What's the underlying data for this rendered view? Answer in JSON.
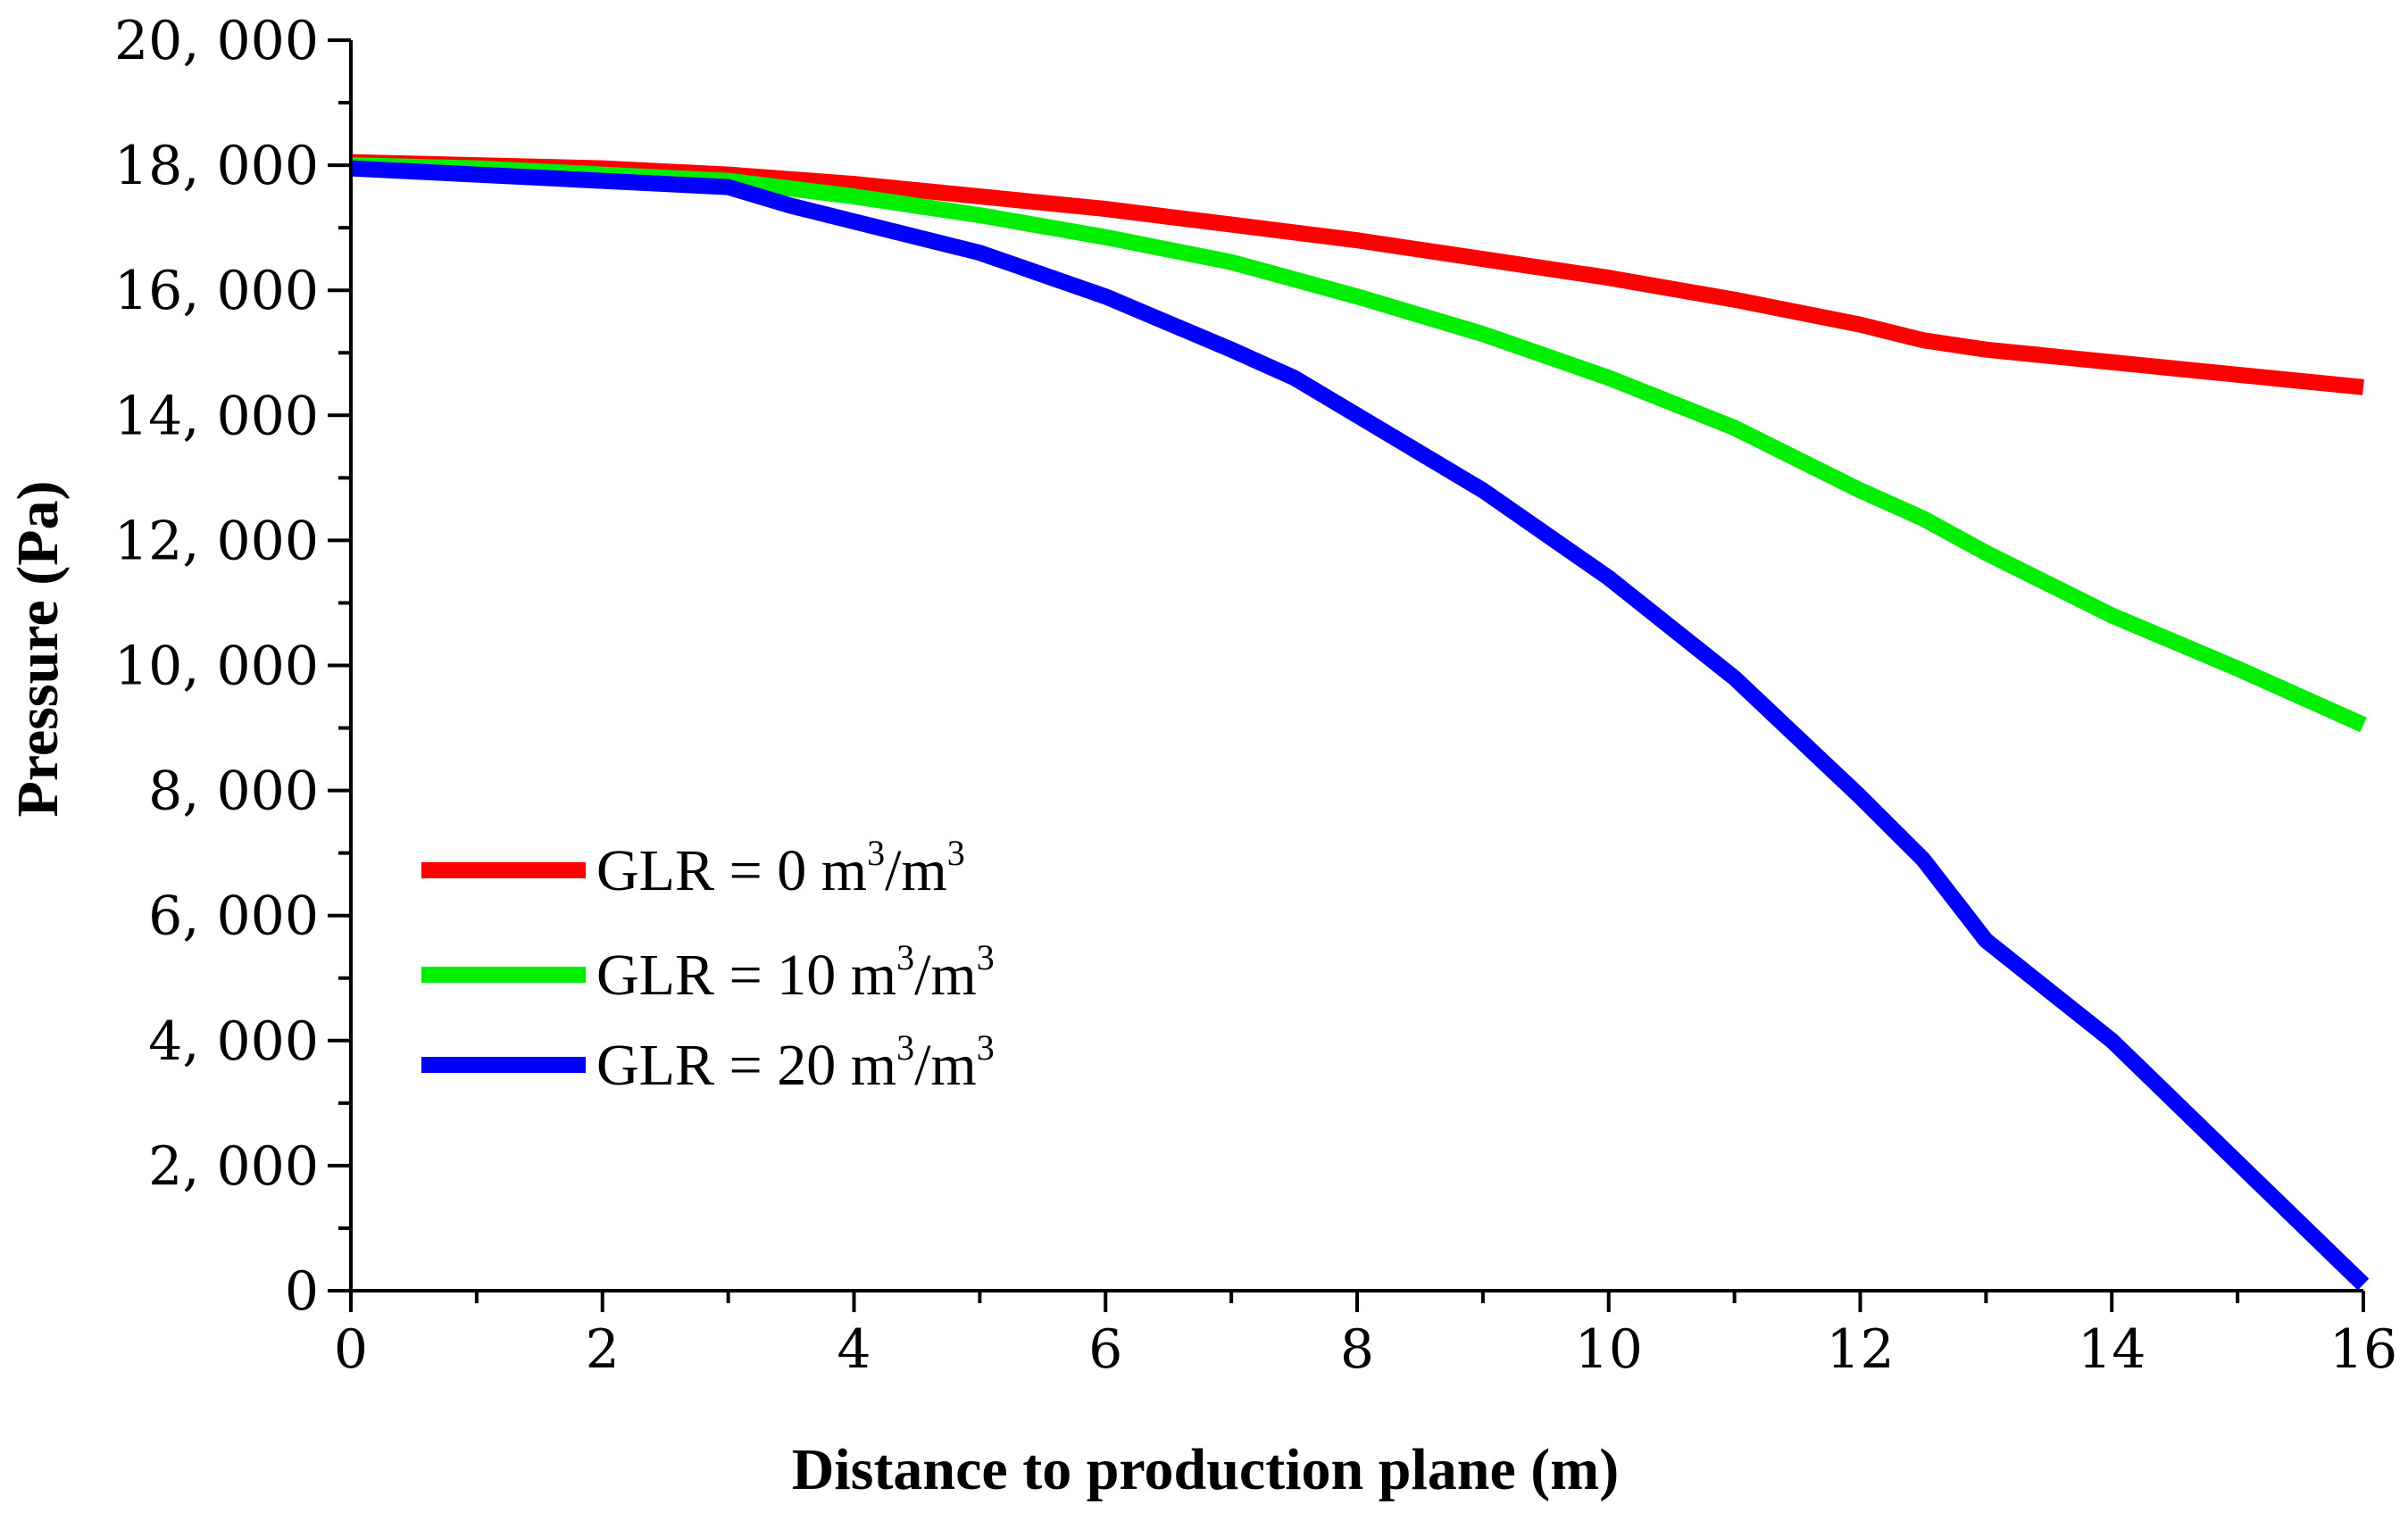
{
  "chart_data": {
    "type": "line",
    "title": "",
    "xlabel": "Distance to production plane (m)",
    "ylabel": "Pressure (Pa)",
    "xlim": [
      0,
      16
    ],
    "ylim": [
      0,
      20000
    ],
    "xticks": [
      0,
      2,
      4,
      6,
      8,
      10,
      12,
      14,
      16
    ],
    "xtick_labels": [
      "0",
      "2",
      "4",
      "6",
      "8",
      "10",
      "12",
      "14",
      "16"
    ],
    "yticks": [
      0,
      2000,
      4000,
      6000,
      8000,
      10000,
      12000,
      14000,
      16000,
      18000,
      20000
    ],
    "ytick_labels": [
      "0",
      "2, 000",
      "4, 000",
      "6, 000",
      "8, 000",
      "10, 000",
      "12, 000",
      "14, 000",
      "16, 000",
      "18, 000",
      "20, 000"
    ],
    "grid": false,
    "legend_position": "left",
    "series": [
      {
        "name": "GLR = 0 m3/m3",
        "label_main": "GLR = 0 m",
        "label_mid": "/m",
        "sup": "3",
        "color": "#ff0000",
        "x": [
          0,
          1,
          2,
          3,
          4,
          5,
          6,
          7,
          8,
          9,
          10,
          11,
          12,
          12.5,
          13,
          14,
          15,
          16
        ],
        "y": [
          18050,
          18000,
          17950,
          17850,
          17700,
          17500,
          17300,
          17050,
          16800,
          16500,
          16200,
          15850,
          15450,
          15200,
          15050,
          14850,
          14650,
          14450
        ]
      },
      {
        "name": "GLR = 10 m3/m3",
        "label_main": "GLR = 10 m",
        "label_mid": "/m",
        "sup": "3",
        "color": "#00ee00",
        "x": [
          0,
          1,
          2,
          3,
          4,
          5,
          6,
          7,
          8,
          9,
          10,
          11,
          12,
          12.5,
          13,
          14,
          15,
          16
        ],
        "y": [
          18000,
          17950,
          17850,
          17750,
          17500,
          17200,
          16850,
          16450,
          15900,
          15300,
          14600,
          13800,
          12800,
          12350,
          11800,
          10800,
          9950,
          9050
        ]
      },
      {
        "name": "GLR = 20 m3/m3",
        "label_main": "GLR = 20 m",
        "label_mid": "/m",
        "sup": "3",
        "color": "#0000ff",
        "x": [
          0,
          1,
          2,
          3,
          3.5,
          4,
          5,
          6,
          7,
          7.5,
          8,
          9,
          10,
          11,
          12,
          12.5,
          13,
          14,
          15,
          16
        ],
        "y": [
          17950,
          17850,
          17750,
          17650,
          17350,
          17100,
          16600,
          15900,
          15050,
          14600,
          14000,
          12800,
          11400,
          9800,
          7900,
          6900,
          5600,
          4000,
          2050,
          100
        ]
      }
    ]
  }
}
